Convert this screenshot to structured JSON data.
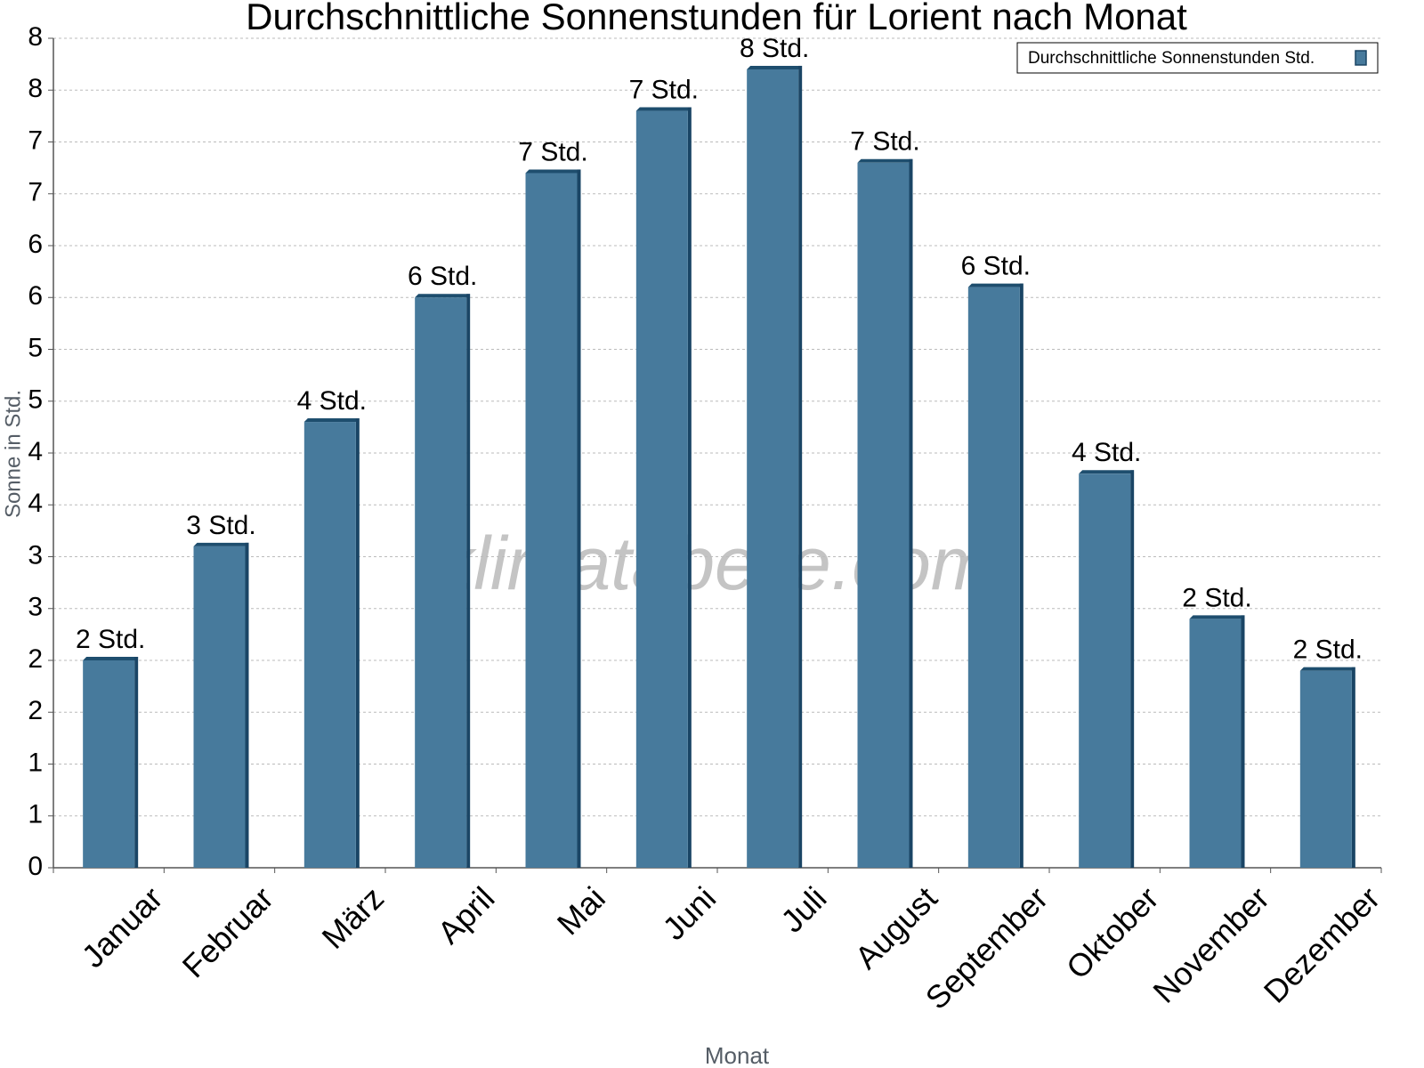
{
  "chart_data": {
    "type": "bar",
    "title": "Durchschnittliche Sonnenstunden für Lorient nach Monat",
    "x_label": "Monat",
    "y_label": "Sonne in Std.",
    "watermark": "klimatabelle.com",
    "categories": [
      "Januar",
      "Februar",
      "März",
      "April",
      "Mai",
      "Juni",
      "Juli",
      "August",
      "September",
      "Oktober",
      "November",
      "Dezember"
    ],
    "series": [
      {
        "name": "Durchschnittliche Sonnenstunden Std.",
        "color": "#477a9c",
        "values": [
          2.0,
          3.1,
          4.3,
          5.5,
          6.7,
          7.3,
          7.7,
          6.8,
          5.6,
          3.8,
          2.4,
          1.9
        ],
        "value_labels": [
          "2 Std.",
          "3 Std.",
          "4 Std.",
          "6 Std.",
          "7 Std.",
          "7 Std.",
          "8 Std.",
          "7 Std.",
          "6 Std.",
          "4 Std.",
          "2 Std.",
          "2 Std."
        ]
      }
    ],
    "ylim": [
      0,
      8
    ],
    "yticks": [
      0,
      {
        "value": 0.5,
        "label": "1"
      },
      1,
      {
        "value": 1.5,
        "label": "2"
      },
      2,
      {
        "value": 2.5,
        "label": "3"
      },
      3,
      {
        "value": 3.5,
        "label": "4"
      },
      4,
      {
        "value": 4.5,
        "label": "5"
      },
      5,
      {
        "value": 5.5,
        "label": "6"
      },
      6,
      {
        "value": 6.5,
        "label": "7"
      },
      7,
      {
        "value": 7.5,
        "label": "8"
      },
      8
    ],
    "grid": true,
    "legend": "top-right"
  }
}
